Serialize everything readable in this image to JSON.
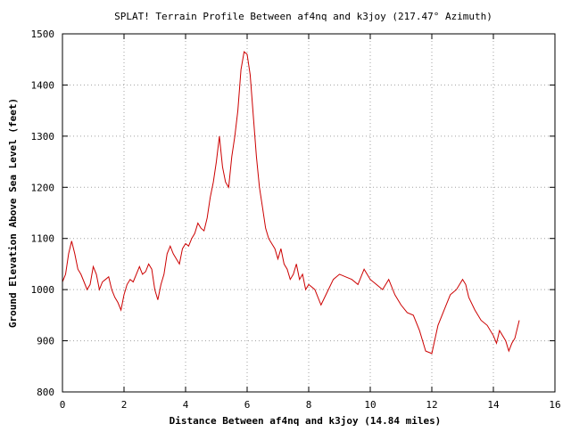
{
  "chart_data": {
    "type": "line",
    "title": "SPLAT! Terrain Profile Between af4nq and k3joy (217.47° Azimuth)",
    "xlabel": "Distance Between af4nq and k3joy (14.84 miles)",
    "ylabel": "Ground Elevation Above Sea Level (feet)",
    "xlim": [
      0,
      16
    ],
    "ylim": [
      800,
      1500
    ],
    "xticks": [
      0,
      2,
      4,
      6,
      8,
      10,
      12,
      14,
      16
    ],
    "yticks": [
      800,
      900,
      1000,
      1100,
      1200,
      1300,
      1400,
      1500
    ],
    "grid": true,
    "line_color": "#cc0000",
    "series": [
      {
        "x": [
          0.0,
          0.1,
          0.2,
          0.3,
          0.4,
          0.5,
          0.6,
          0.7,
          0.8,
          0.9,
          1.0,
          1.1,
          1.2,
          1.3,
          1.4,
          1.5,
          1.6,
          1.7,
          1.8,
          1.9,
          2.0,
          2.1,
          2.2,
          2.3,
          2.4,
          2.5,
          2.6,
          2.7,
          2.8,
          2.9,
          3.0,
          3.1,
          3.2,
          3.3,
          3.4,
          3.5,
          3.6,
          3.7,
          3.8,
          3.9,
          4.0,
          4.1,
          4.2,
          4.3,
          4.4,
          4.5,
          4.6,
          4.7,
          4.8,
          4.9,
          5.0,
          5.1,
          5.2,
          5.3,
          5.4,
          5.5,
          5.6,
          5.7,
          5.8,
          5.9,
          6.0,
          6.1,
          6.2,
          6.3,
          6.4,
          6.5,
          6.6,
          6.7,
          6.8,
          6.9,
          7.0,
          7.1,
          7.2,
          7.3,
          7.4,
          7.5,
          7.6,
          7.7,
          7.8,
          7.9,
          8.0,
          8.2,
          8.4,
          8.6,
          8.8,
          9.0,
          9.2,
          9.4,
          9.6,
          9.8,
          10.0,
          10.2,
          10.4,
          10.6,
          10.8,
          11.0,
          11.2,
          11.4,
          11.6,
          11.8,
          12.0,
          12.2,
          12.4,
          12.6,
          12.8,
          13.0,
          13.1,
          13.2,
          13.4,
          13.6,
          13.8,
          14.0,
          14.1,
          14.2,
          14.4,
          14.5,
          14.6,
          14.7,
          14.84
        ],
        "values": [
          1015,
          1030,
          1070,
          1095,
          1070,
          1040,
          1030,
          1015,
          1000,
          1010,
          1045,
          1030,
          1000,
          1015,
          1020,
          1025,
          1000,
          985,
          975,
          960,
          990,
          1010,
          1020,
          1015,
          1030,
          1045,
          1030,
          1035,
          1050,
          1040,
          1000,
          980,
          1010,
          1030,
          1070,
          1085,
          1070,
          1060,
          1050,
          1080,
          1090,
          1085,
          1100,
          1110,
          1130,
          1120,
          1115,
          1140,
          1180,
          1210,
          1250,
          1300,
          1240,
          1210,
          1200,
          1260,
          1300,
          1350,
          1430,
          1465,
          1460,
          1420,
          1340,
          1260,
          1200,
          1160,
          1120,
          1100,
          1090,
          1080,
          1060,
          1080,
          1050,
          1040,
          1020,
          1030,
          1050,
          1020,
          1030,
          1000,
          1010,
          1000,
          970,
          995,
          1020,
          1030,
          1025,
          1020,
          1010,
          1040,
          1020,
          1010,
          1000,
          1020,
          990,
          970,
          955,
          950,
          920,
          880,
          875,
          930,
          960,
          990,
          1000,
          1020,
          1010,
          985,
          960,
          940,
          930,
          910,
          895,
          920,
          900,
          880,
          895,
          905,
          940
        ]
      }
    ]
  }
}
